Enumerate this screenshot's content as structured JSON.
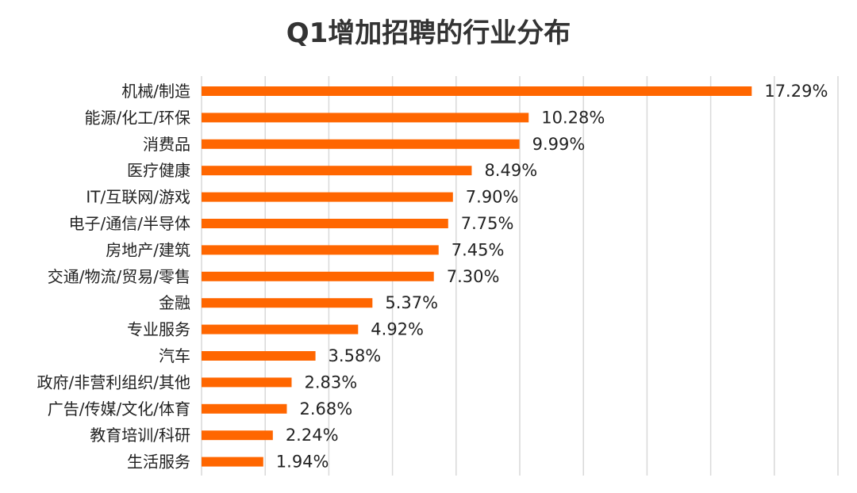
{
  "chart_data": {
    "type": "bar",
    "orientation": "horizontal",
    "title": "Q1增加招聘的行业分布",
    "categories": [
      "机械/制造",
      "能源/化工/环保",
      "消费品",
      "医疗健康",
      "IT/互联网/游戏",
      "电子/通信/半导体",
      "房地产/建筑",
      "交通/物流/贸易/零售",
      "金融",
      "专业服务",
      "汽车",
      "政府/非营利组织/其他",
      "广告/传媒/文化/体育",
      "教育培训/科研",
      "生活服务"
    ],
    "values": [
      17.29,
      10.28,
      9.99,
      8.49,
      7.9,
      7.75,
      7.45,
      7.3,
      5.37,
      4.92,
      3.58,
      2.83,
      2.68,
      2.24,
      1.94
    ],
    "data_labels": [
      "17.29%",
      "10.28%",
      "9.99%",
      "8.49%",
      "7.90%",
      "7.75%",
      "7.45%",
      "7.30%",
      "5.37%",
      "4.92%",
      "3.58%",
      "2.83%",
      "2.68%",
      "2.24%",
      "1.94%"
    ],
    "unit": "%",
    "xlim": [
      0,
      20
    ],
    "gridlines": "vertical",
    "gridline_step": 2,
    "legend": "none",
    "bar_color": "#FF6600",
    "grid_color": "#D9D9D9"
  }
}
